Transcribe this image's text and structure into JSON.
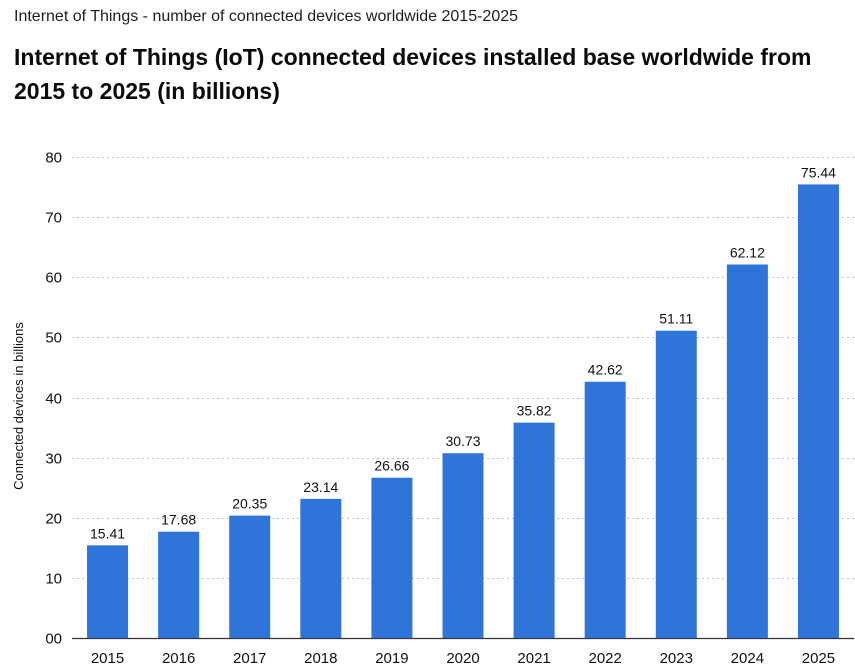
{
  "page": {
    "subtitle": "Internet of Things - number of connected devices worldwide 2015-2025",
    "title": "Internet of Things (IoT) connected devices installed base worldwide from 2015 to 2025 (in billions)"
  },
  "chart_data": {
    "type": "bar",
    "categories": [
      "2015",
      "2016",
      "2017",
      "2018",
      "2019",
      "2020",
      "2021",
      "2022",
      "2023",
      "2024",
      "2025"
    ],
    "values": [
      15.41,
      17.68,
      20.35,
      23.14,
      26.66,
      30.73,
      35.82,
      42.62,
      51.11,
      62.12,
      75.44
    ],
    "value_labels": [
      "15.41",
      "17.68",
      "20.35",
      "23.14",
      "26.66",
      "30.73",
      "35.82",
      "42.62",
      "51.11",
      "62.12",
      "75.44"
    ],
    "ylabel": "Connected devices in billions",
    "xlabel": "",
    "ylim": [
      0,
      80
    ],
    "yticks": [
      0,
      10,
      20,
      30,
      40,
      50,
      60,
      70,
      80
    ],
    "ytick_labels": [
      "00",
      "10",
      "20",
      "30",
      "40",
      "50",
      "60",
      "70",
      "80"
    ],
    "grid": true,
    "bar_color": "#2f74d8"
  }
}
